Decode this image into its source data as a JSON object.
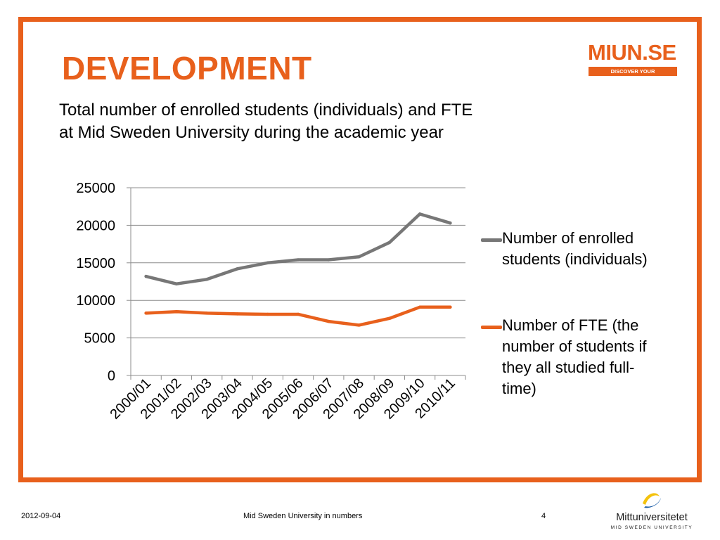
{
  "slide": {
    "title": "DEVELOPMENT",
    "subtitle_lines": [
      "Total number of enrolled students (individuals) and FTE",
      "at Mid Sweden University during the academic year"
    ],
    "frame_color": "#e8601c"
  },
  "brand_logo": {
    "name": "MIUN.SE",
    "tagline": "DISCOVER YOUR OPPORTUNITIES",
    "color": "#e8601c"
  },
  "footer": {
    "date": "2012-09-04",
    "center_text": "Mid Sweden University in numbers",
    "page_number": "4"
  },
  "university_logo": {
    "name": "Mittuniversitetet",
    "subtitle": "MID SWEDEN UNIVERSITY",
    "icon": "swoosh-logo-icon",
    "colors": [
      "#f4c20d",
      "#1f5fa8"
    ]
  },
  "chart_data": {
    "type": "line",
    "categories": [
      "2000/01",
      "2001/02",
      "2002/03",
      "2003/04",
      "2004/05",
      "2005/06",
      "2006/07",
      "2007/08",
      "2008/09",
      "2009/10",
      "2010/11"
    ],
    "series": [
      {
        "name": "Number of enrolled students (individuals)",
        "color": "#777777",
        "values": [
          13200,
          12200,
          12800,
          14200,
          15000,
          15400,
          15400,
          15800,
          17700,
          21500,
          20300
        ]
      },
      {
        "name": "Number of FTE (the number of students if they all studied full-time)",
        "color": "#e8601c",
        "values": [
          8300,
          8500,
          8300,
          8200,
          8150,
          8150,
          7200,
          6700,
          7600,
          9100,
          9100
        ]
      }
    ],
    "yticks": [
      0,
      5000,
      10000,
      15000,
      20000,
      25000
    ],
    "ylim": [
      0,
      25000
    ],
    "grid": true,
    "legend_position": "right",
    "legend_labels": [
      [
        "Number of enrolled",
        "students (individuals)"
      ],
      [
        "Number of FTE (the",
        "number of students if",
        "they all studied full-",
        "time)"
      ]
    ]
  }
}
